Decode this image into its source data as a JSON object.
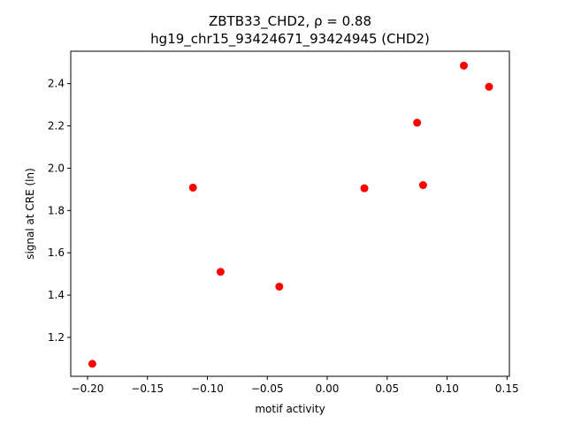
{
  "chart_data": {
    "type": "scatter",
    "title_line1": "ZBTB33_CHD2, ρ = 0.88",
    "title_line2": "hg19_chr15_93424671_93424945 (CHD2)",
    "xlabel": "motif activity",
    "ylabel": "signal at CRE (ln)",
    "xlim": [
      -0.214,
      0.152
    ],
    "ylim": [
      1.016,
      2.553
    ],
    "xticks": [
      -0.2,
      -0.15,
      -0.1,
      -0.05,
      0.0,
      0.05,
      0.1,
      0.15
    ],
    "xtick_labels": [
      "−0.20",
      "−0.15",
      "−0.10",
      "−0.05",
      "0.00",
      "0.05",
      "0.10",
      "0.15"
    ],
    "yticks": [
      1.2,
      1.4,
      1.6,
      1.8,
      2.0,
      2.2,
      2.4
    ],
    "ytick_labels": [
      "1.2",
      "1.4",
      "1.6",
      "1.8",
      "2.0",
      "2.2",
      "2.4"
    ],
    "marker_color": "#ff0000",
    "grid": false,
    "points": [
      {
        "x": -0.196,
        "y": 1.075
      },
      {
        "x": -0.112,
        "y": 1.908
      },
      {
        "x": -0.089,
        "y": 1.51
      },
      {
        "x": -0.04,
        "y": 1.44
      },
      {
        "x": 0.031,
        "y": 1.905
      },
      {
        "x": 0.075,
        "y": 2.215
      },
      {
        "x": 0.08,
        "y": 1.92
      },
      {
        "x": 0.114,
        "y": 2.485
      },
      {
        "x": 0.135,
        "y": 2.385
      }
    ]
  }
}
